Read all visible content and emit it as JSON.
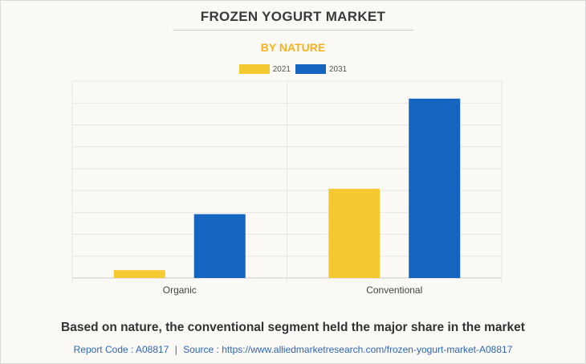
{
  "header": {
    "title": "FROZEN YOGURT MARKET",
    "subtitle": "BY NATURE"
  },
  "footer": {
    "caption": "Based on nature, the conventional segment held the major share in the market",
    "report_code": "Report Code : A08817",
    "separator": "|",
    "source": "Source : https://www.alliedmarketresearch.com/frozen-yogurt-market-A08817"
  },
  "colors": {
    "series_2021": "#f5c932",
    "series_2031": "#1565c0",
    "subtitle": "#f5b324",
    "grid": "#e6e6e6"
  },
  "chart_data": {
    "type": "bar",
    "categories": [
      "Organic",
      "Conventional"
    ],
    "series": [
      {
        "name": "2021",
        "values": [
          0.9,
          10.2
        ],
        "color": "#f5c932"
      },
      {
        "name": "2031",
        "values": [
          7.3,
          20.5
        ],
        "color": "#1565c0"
      }
    ],
    "ylim": [
      0,
      22.5
    ],
    "grid": true,
    "legend": "top-center",
    "yticks_visible": false
  }
}
